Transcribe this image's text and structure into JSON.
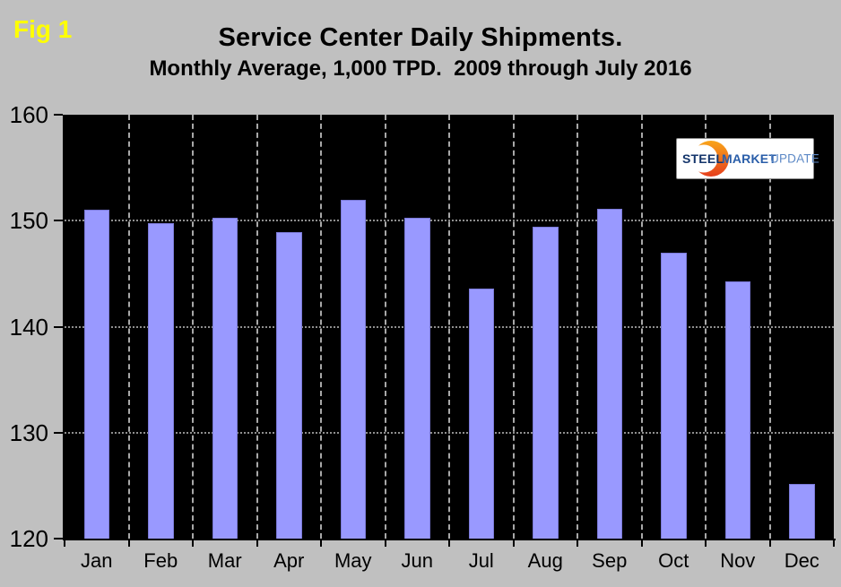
{
  "figure": {
    "fig_label": "Fig 1",
    "title": "Service Center Daily Shipments.",
    "subtitle": "Monthly Average, 1,000 TPD.  2009 through July 2016"
  },
  "logo": {
    "steel": "STEEL",
    "market": "MARKET",
    "update": "UPDATE",
    "colors": {
      "steel_text": "#14356B",
      "market_text": "#2A5EA9",
      "update_text": "#5D89C6",
      "crescent_top": "#F9A51A",
      "crescent_bottom": "#E63E1C",
      "box_bg": "#FFFFFF"
    }
  },
  "chart_data": {
    "type": "bar",
    "title": "Service Center Daily Shipments.",
    "subtitle": "Monthly Average, 1,000 TPD.  2009 through July 2016",
    "categories": [
      "Jan",
      "Feb",
      "Mar",
      "Apr",
      "May",
      "Jun",
      "Jul",
      "Aug",
      "Sep",
      "Oct",
      "Nov",
      "Dec"
    ],
    "values": [
      151.0,
      149.8,
      150.3,
      148.9,
      152.0,
      150.3,
      143.6,
      149.4,
      151.1,
      147.0,
      144.3,
      125.2
    ],
    "xlabel": "",
    "ylabel": "",
    "ylim": [
      120,
      160
    ],
    "yticks": [
      120,
      130,
      140,
      150,
      160
    ],
    "h_gridlines": [
      130,
      140,
      150
    ],
    "grid": "dotted horizontal lines at 130/140/150, dashed vertical lines at month boundaries",
    "legend": "none",
    "bar_color": "#9999FF",
    "bar_border_color": "#7B7AD8",
    "plot_bg": "#000000",
    "page_bg": "#C0C0C0",
    "axis_color": "#000000",
    "h_gridline_color": "#8F8F8F",
    "v_gridline_color": "#A8A8A8"
  }
}
